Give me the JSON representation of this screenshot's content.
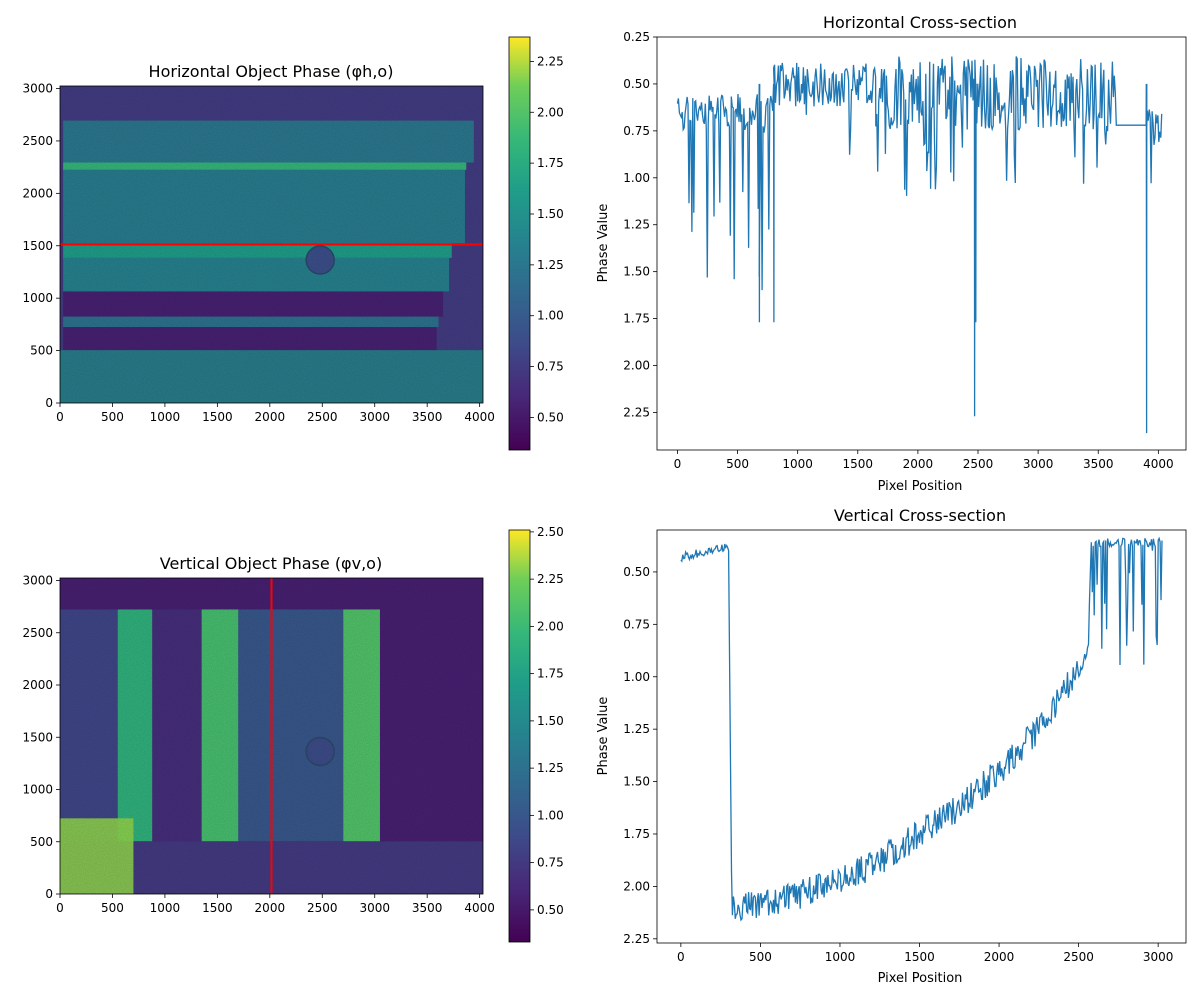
{
  "chart_data": [
    {
      "type": "heatmap",
      "title": "Horizontal Object Phase (φh,o)",
      "colormap": "viridis",
      "xlim": [
        0,
        4032
      ],
      "ylim": [
        3024,
        0
      ],
      "xticks": [
        0,
        500,
        1000,
        1500,
        2000,
        2500,
        3000,
        3500,
        4000
      ],
      "yticks": [
        0,
        500,
        1000,
        1500,
        2000,
        2500,
        3000
      ],
      "colorbar": {
        "range": [
          0.34,
          2.37
        ],
        "ticks": [
          0.5,
          0.75,
          1.0,
          1.25,
          1.5,
          1.75,
          2.0,
          2.25
        ]
      },
      "marker_line": {
        "orientation": "horizontal",
        "value": 1512,
        "color": "#ff0000"
      },
      "bands": [
        {
          "y": [
            330,
            730
          ],
          "value": 1.25
        },
        {
          "y": [
            730,
            800
          ],
          "value": 1.85
        },
        {
          "y": [
            800,
            1500
          ],
          "value": 1.3
        },
        {
          "y": [
            1500,
            1640
          ],
          "value": 1.6
        },
        {
          "y": [
            1640,
            1960
          ],
          "value": 1.35
        },
        {
          "y": [
            1960,
            2200
          ],
          "value": 0.55
        },
        {
          "y": [
            2200,
            2300
          ],
          "value": 1.2
        },
        {
          "y": [
            2300,
            2520
          ],
          "value": 0.55
        }
      ]
    },
    {
      "type": "line",
      "title": "Horizontal Cross-section",
      "xlabel": "Pixel Position",
      "ylabel": "Phase Value",
      "xlim": [
        -170,
        4230
      ],
      "ylim": [
        0.25,
        2.45
      ],
      "xticks": [
        0,
        500,
        1000,
        1500,
        2000,
        2500,
        3000,
        3500,
        4000
      ],
      "yticks": [
        0.25,
        0.5,
        0.75,
        1.0,
        1.25,
        1.5,
        1.75,
        2.0,
        2.25
      ],
      "series": [
        {
          "color": "#1f77b4"
        }
      ],
      "segments": [
        {
          "x": [
            0,
            800
          ],
          "base": 0.65,
          "noise": 0.1,
          "spike_prob": 0.14,
          "spike_max": 1.62
        },
        {
          "x": [
            800,
            1650
          ],
          "base": 0.5,
          "noise": 0.12,
          "spike_prob": 0.01,
          "spike_max": 0.93
        },
        {
          "x": [
            1650,
            3650
          ],
          "base": 0.55,
          "noise": 0.2,
          "spike_prob": 0.12,
          "spike_max": 1.1
        },
        {
          "x": [
            3650,
            3900
          ],
          "base": 0.72,
          "noise": 0.0,
          "spike_prob": 0.0,
          "spike_max": 0.72
        },
        {
          "x": [
            3900,
            4032
          ],
          "base": 0.72,
          "noise": 0.1,
          "spike_prob": 0.05,
          "spike_max": 1.05
        }
      ],
      "peaks": [
        {
          "x": 2470,
          "y": 2.27
        },
        {
          "x": 2480,
          "y": 1.77
        },
        {
          "x": 3900,
          "y": 2.36
        },
        {
          "x": 680,
          "y": 1.77
        },
        {
          "x": 800,
          "y": 1.77
        }
      ]
    },
    {
      "type": "heatmap",
      "title": "Vertical Object Phase (φv,o)",
      "colormap": "viridis",
      "xlim": [
        0,
        4032
      ],
      "ylim": [
        3024,
        0
      ],
      "xticks": [
        0,
        500,
        1000,
        1500,
        2000,
        2500,
        3000,
        3500,
        4000
      ],
      "yticks": [
        0,
        500,
        1000,
        1500,
        2000,
        2500,
        3000
      ],
      "colorbar": {
        "range": [
          0.33,
          2.51
        ],
        "ticks": [
          0.5,
          0.75,
          1.0,
          1.25,
          1.5,
          1.75,
          2.0,
          2.25,
          2.5
        ]
      },
      "marker_line": {
        "orientation": "vertical",
        "value": 2016,
        "color": "#ff0000"
      },
      "bands": [
        {
          "x": [
            0,
            550
          ],
          "value": 0.85
        },
        {
          "x": [
            550,
            880
          ],
          "value": 1.9
        },
        {
          "x": [
            880,
            1350
          ],
          "value": 0.65
        },
        {
          "x": [
            1350,
            1700
          ],
          "value": 2.05
        },
        {
          "x": [
            1700,
            2700
          ],
          "value": 1.0
        },
        {
          "x": [
            2700,
            3050
          ],
          "value": 2.1
        },
        {
          "x": [
            3050,
            3900
          ],
          "value": 0.55
        }
      ]
    },
    {
      "type": "line",
      "title": "Vertical Cross-section",
      "xlabel": "Pixel Position",
      "ylabel": "Phase Value",
      "xlim": [
        -150,
        3175
      ],
      "ylim": [
        0.3,
        2.27
      ],
      "xticks": [
        0,
        500,
        1000,
        1500,
        2000,
        2500,
        3000
      ],
      "yticks": [
        0.5,
        0.75,
        1.0,
        1.25,
        1.5,
        1.75,
        2.0,
        2.25
      ],
      "series": [
        {
          "color": "#1f77b4"
        }
      ],
      "profile": [
        [
          0,
          0.43
        ],
        [
          300,
          0.38
        ],
        [
          320,
          2.1
        ],
        [
          500,
          2.08
        ],
        [
          700,
          2.05
        ],
        [
          1000,
          1.98
        ],
        [
          1250,
          1.88
        ],
        [
          1500,
          1.75
        ],
        [
          1750,
          1.62
        ],
        [
          2000,
          1.45
        ],
        [
          2250,
          1.25
        ],
        [
          2450,
          1.02
        ],
        [
          2560,
          0.9
        ],
        [
          2580,
          0.36
        ],
        [
          3024,
          0.36
        ]
      ]
    }
  ]
}
